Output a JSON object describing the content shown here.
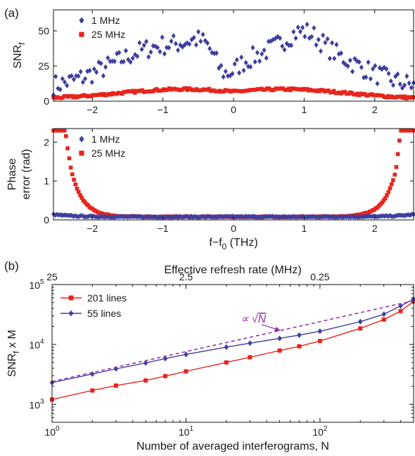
{
  "panel_labels": {
    "a": "(a)",
    "b": "(b)"
  },
  "colors": {
    "blue": "#3f3f9e",
    "red": "#e8241c",
    "purple": "#9b2fae"
  },
  "chart_data": [
    {
      "type": "scatter",
      "ylabel_main": "SNR",
      "ylabel_sub": "f",
      "xlim": [
        -2.55,
        2.55
      ],
      "ylim": [
        0,
        65
      ],
      "xticks": [
        -2,
        -1,
        0,
        1,
        2
      ],
      "xtick_labels": [
        "−2",
        "−1",
        "0",
        "1",
        "2"
      ],
      "yticks": [
        0,
        25,
        50
      ],
      "ytick_labels": [
        "0",
        "25",
        "50"
      ],
      "legend_position": "top-left",
      "series": [
        {
          "name": "1 MHz",
          "marker": "diamond",
          "color": "#3f3f9e",
          "model": "snr_1mhz",
          "x": [],
          "y": []
        },
        {
          "name": "25 MHz",
          "marker": "square",
          "color": "#e8241c",
          "model": "snr_25mhz",
          "x": [],
          "y": []
        }
      ]
    },
    {
      "type": "scatter",
      "ylabel_lines": [
        "Phase",
        "error (rad)"
      ],
      "xlabel_main": "f−f",
      "xlabel_sub": "0",
      "xlabel_tail": " (THz)",
      "xlim": [
        -2.55,
        2.55
      ],
      "ylim": [
        0,
        2.35
      ],
      "xticks": [
        -2,
        -1,
        0,
        1,
        2
      ],
      "xtick_labels": [
        "−2",
        "−1",
        "0",
        "1",
        "2"
      ],
      "yticks": [
        0,
        1,
        2
      ],
      "ytick_labels": [
        "0",
        "1",
        "2"
      ],
      "legend_position": "top-left",
      "series": [
        {
          "name": "1 MHz",
          "marker": "diamond",
          "color": "#3f3f9e",
          "model": "phase_1mhz",
          "x": [],
          "y": []
        },
        {
          "name": "25 MHz",
          "marker": "square",
          "color": "#e8241c",
          "model": "phase_25mhz",
          "x": [],
          "y": []
        }
      ]
    },
    {
      "type": "line",
      "scale": "log-log",
      "xlabel": "Number of averaged interferograms, N",
      "top_xlabel": "Effective refresh rate (MHz)",
      "top_tick_labels": [
        "25",
        "2.5",
        "0.25"
      ],
      "top_tick_N": [
        1,
        10,
        100
      ],
      "ylabel_main": "SNR",
      "ylabel_sub": "f",
      "ylabel_tail": " x M",
      "xlim": [
        1,
        500
      ],
      "ylim": [
        500,
        100000
      ],
      "xticks": [
        1,
        10,
        100
      ],
      "xtick_base": "10",
      "xtick_exp": [
        "0",
        "1",
        "2"
      ],
      "yticks": [
        1000,
        10000,
        100000
      ],
      "ytick_base": "10",
      "ytick_exp": [
        "3",
        "4",
        "5"
      ],
      "annotation": {
        "prefix": "∝ ",
        "radical": "√",
        "symbol": "N"
      },
      "legend_position": "top-left",
      "series": [
        {
          "name": "201 lines",
          "marker": "square",
          "color": "#e8241c",
          "x": [
            1,
            2,
            3,
            5,
            7,
            10,
            20,
            30,
            50,
            70,
            100,
            200,
            300,
            400,
            500
          ],
          "y": [
            1200,
            1700,
            2050,
            2500,
            2950,
            3550,
            5000,
            6100,
            7900,
            9300,
            11400,
            18500,
            26000,
            36000,
            52000
          ]
        },
        {
          "name": "55 lines",
          "marker": "diamond",
          "color": "#3f3f9e",
          "x": [
            1,
            2,
            3,
            5,
            7,
            10,
            20,
            30,
            50,
            70,
            100,
            200,
            300,
            400,
            500
          ],
          "y": [
            2300,
            3200,
            3900,
            4900,
            5800,
            6800,
            9000,
            10500,
            12600,
            14300,
            16600,
            24000,
            32000,
            44000,
            57000
          ]
        },
        {
          "name": "fit",
          "style": "dashed",
          "color": "#9b2fae",
          "x": [
            1,
            500
          ],
          "y": [
            2400,
            53700
          ]
        }
      ]
    }
  ]
}
